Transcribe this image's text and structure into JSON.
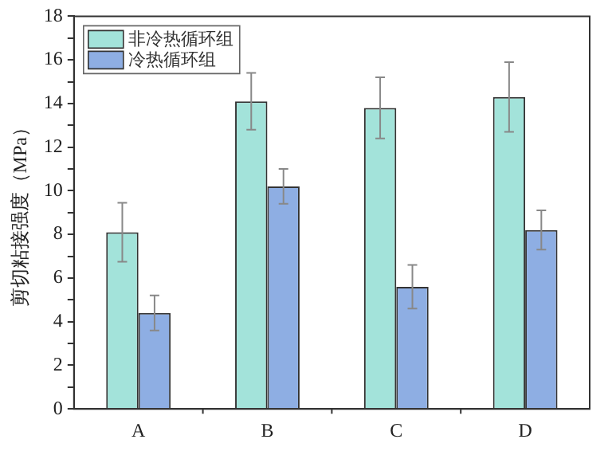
{
  "chart_data": {
    "type": "bar",
    "ylabel": "剪切粘接强度（MPa）",
    "categories": [
      "A",
      "B",
      "C",
      "D"
    ],
    "series": [
      {
        "name": "非冷热循环组",
        "color": "#a3e3da",
        "values": [
          8.1,
          14.1,
          13.8,
          14.3
        ],
        "errors": [
          1.35,
          1.3,
          1.4,
          1.6
        ]
      },
      {
        "name": "冷热循环组",
        "color": "#8eaee3",
        "values": [
          4.4,
          10.2,
          5.6,
          8.2
        ],
        "errors": [
          0.8,
          0.8,
          1.0,
          0.9
        ]
      }
    ],
    "ylim": [
      0,
      18
    ],
    "yticks": [
      0,
      {
        "value": 1,
        "label": null
      },
      2,
      {
        "value": 3,
        "label": null
      },
      4,
      {
        "value": 5,
        "label": null
      },
      6,
      {
        "value": 7,
        "label": null
      },
      8,
      {
        "value": 9,
        "label": null
      },
      10,
      {
        "value": 11,
        "label": null
      },
      12,
      {
        "value": 13,
        "label": null
      },
      14,
      {
        "value": 15,
        "label": null
      },
      16,
      {
        "value": 17,
        "label": null
      },
      18
    ],
    "grid": false,
    "legend": "top left"
  }
}
